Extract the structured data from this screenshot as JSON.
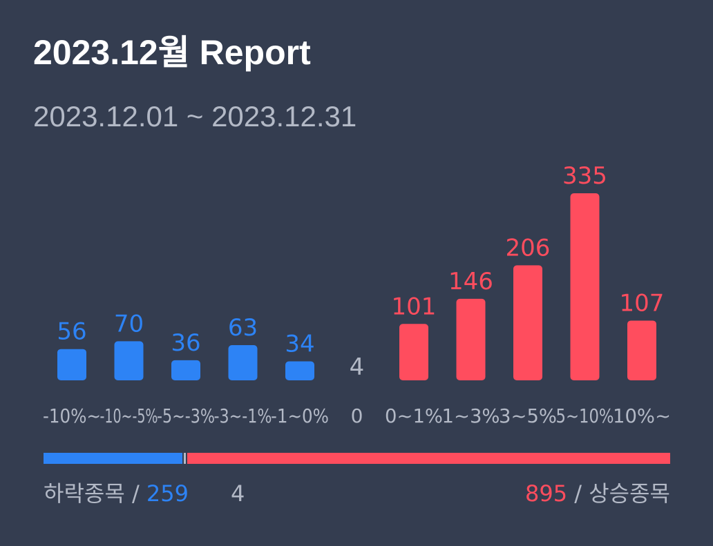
{
  "header": {
    "title": "2023.12월 Report",
    "date_range": "2023.12.01 ~ 2023.12.31"
  },
  "colors": {
    "background": "#343d50",
    "down": "#2d83f5",
    "up": "#ff4d5e",
    "neutral": "#b3b9c6"
  },
  "chart_data": {
    "type": "bar",
    "categories": [
      "-10%~",
      "-10~-5%",
      "-5~-3%",
      "-3~-1%",
      "-1~0%",
      "0",
      "0~1%",
      "1~3%",
      "3~5%",
      "5~10%",
      "10%~"
    ],
    "values": [
      56,
      70,
      36,
      63,
      34,
      4,
      101,
      146,
      206,
      335,
      107
    ],
    "groups": [
      "down",
      "down",
      "down",
      "down",
      "down",
      "flat",
      "up",
      "up",
      "up",
      "up",
      "up"
    ],
    "data_labels": true,
    "grid": false
  },
  "summary": {
    "down_label": "하락종목",
    "down_total": 259,
    "flat_total": 4,
    "up_total": 895,
    "up_label": "상승종목",
    "separator": "/"
  }
}
